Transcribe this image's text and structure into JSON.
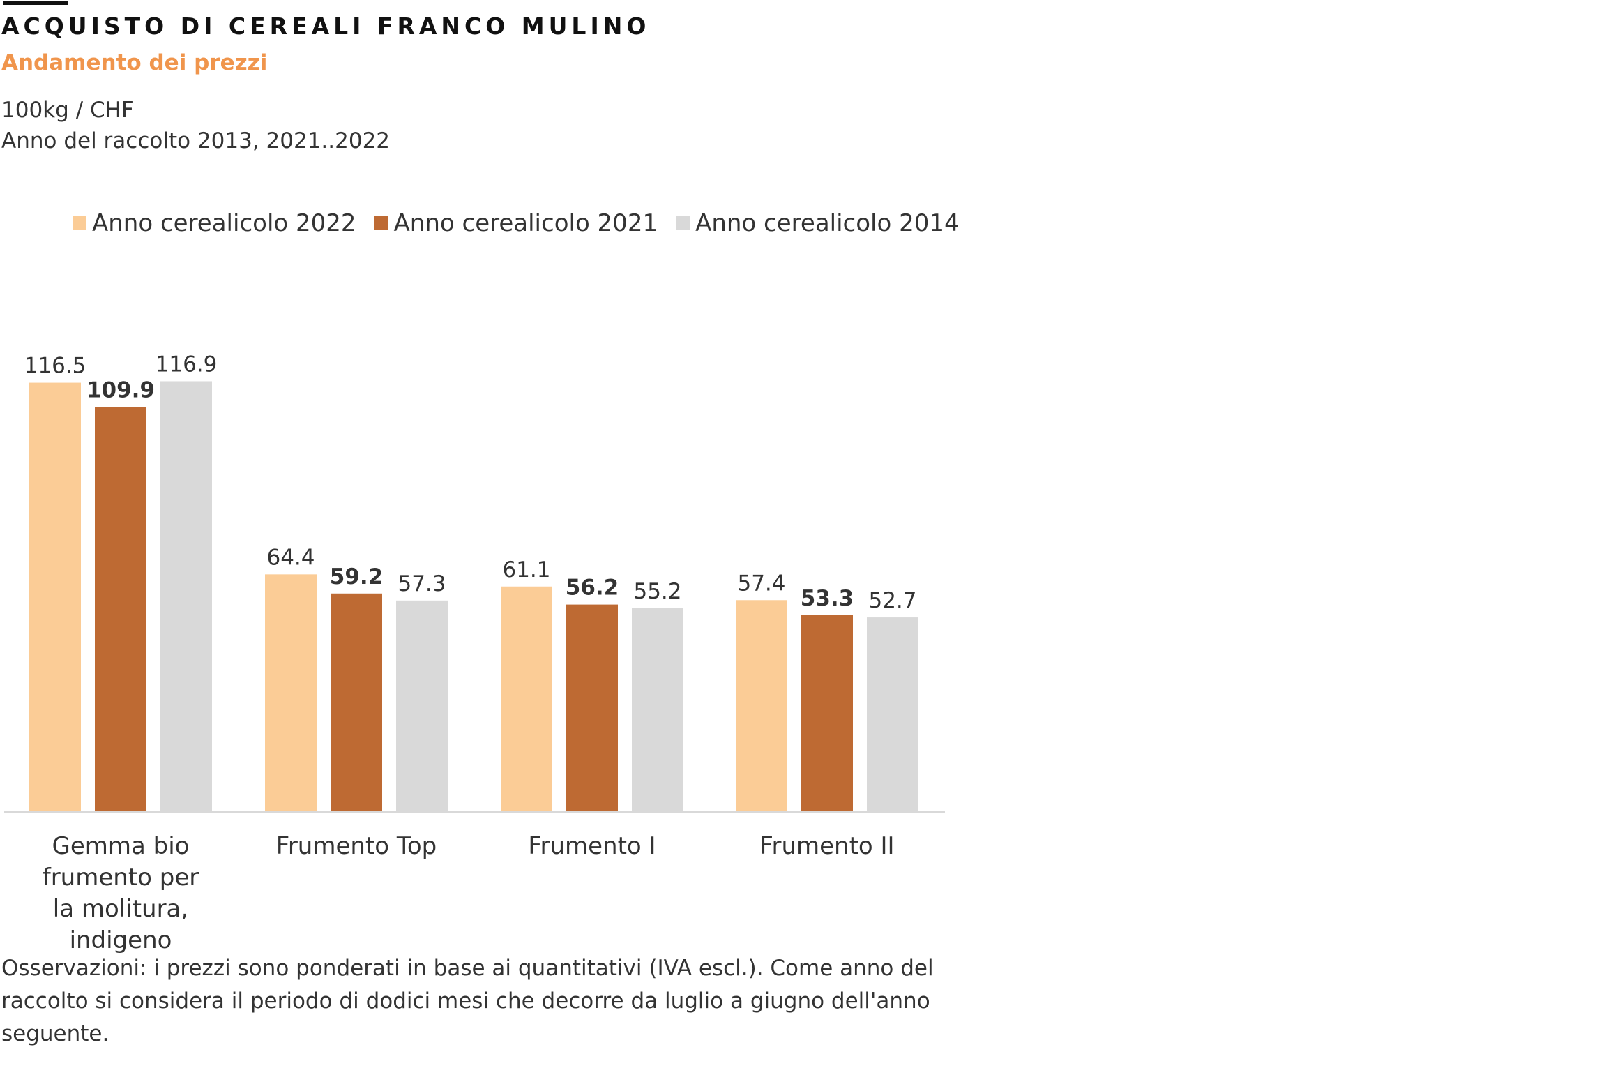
{
  "header": {
    "title": "ACQUISTO DI CEREALI FRANCO MULINO",
    "subtitle": "Andamento dei prezzi",
    "unit": "100kg / CHF",
    "period": "Anno del raccolto 2013, 2021..2022"
  },
  "footer": {
    "note": "Osservazioni: i prezzi sono ponderati in base ai quantitativi (IVA escl.). Come anno del raccolto si considera il periodo di dodici mesi che decorre da luglio a giugno dell'anno seguente."
  },
  "colors": {
    "accent": "#f0954c",
    "series_2022": "#fbcc96",
    "series_2021": "#be6a33",
    "series_2014": "#d9d9d9",
    "axis": "#d9d9d9"
  },
  "chart_data": {
    "type": "bar",
    "legend_position": "top-left",
    "grid": false,
    "ylim": [
      0,
      120
    ],
    "categories": [
      "Gemma bio frumento per la molitura, indigeno",
      "Frumento Top",
      "Frumento I",
      "Frumento II"
    ],
    "series": [
      {
        "name": "Anno cerealicolo 2022",
        "color": "#fbcc96",
        "bold_labels": false,
        "values": [
          116.5,
          64.4,
          61.1,
          57.4
        ],
        "labels": [
          "116.5",
          "64.4",
          "61.1",
          "57.4"
        ]
      },
      {
        "name": "Anno cerealicolo 2021",
        "color": "#be6a33",
        "bold_labels": true,
        "values": [
          109.9,
          59.2,
          56.2,
          53.3
        ],
        "labels": [
          "109.9",
          "59.2",
          "56.2",
          "53.3"
        ]
      },
      {
        "name": "Anno cerealicolo 2014",
        "color": "#d9d9d9",
        "bold_labels": false,
        "values": [
          116.9,
          57.3,
          55.2,
          52.7
        ],
        "labels": [
          "116.9",
          "57.3",
          "55.2",
          "52.7"
        ]
      }
    ]
  }
}
